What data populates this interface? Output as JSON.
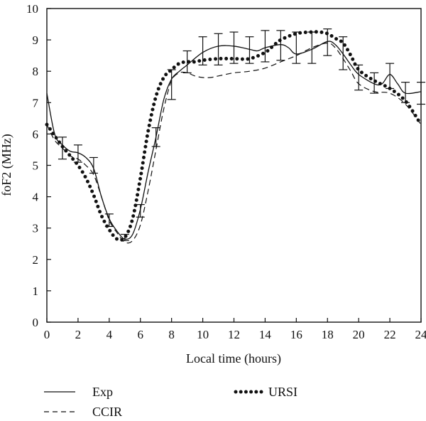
{
  "chart_data": {
    "type": "line",
    "xlabel": "Local time (hours)",
    "ylabel": "foF2 (MHz)",
    "xlim": [
      0,
      24
    ],
    "ylim": [
      0,
      10
    ],
    "xticks": [
      0,
      2,
      4,
      6,
      8,
      10,
      12,
      14,
      16,
      18,
      20,
      22,
      24
    ],
    "yticks": [
      0,
      1,
      2,
      3,
      4,
      5,
      6,
      7,
      8,
      9,
      10
    ],
    "grid": false,
    "legend_position": "bottom",
    "series": [
      {
        "name": "Exp",
        "style": "solid",
        "x": [
          0,
          0.5,
          1,
          1.5,
          2,
          2.5,
          3,
          3.5,
          4,
          4.5,
          5,
          5.5,
          6,
          6.5,
          7,
          7.5,
          8,
          8.5,
          9,
          10,
          11,
          12,
          13,
          13.5,
          14,
          15,
          15.5,
          16,
          17,
          18,
          18.5,
          19,
          19.5,
          20,
          21,
          21.5,
          22,
          22.5,
          23,
          24
        ],
        "y": [
          7.3,
          6.0,
          5.65,
          5.45,
          5.4,
          5.25,
          4.9,
          4.0,
          3.3,
          2.9,
          2.65,
          2.8,
          3.6,
          4.8,
          5.9,
          7.1,
          7.75,
          8.0,
          8.2,
          8.6,
          8.8,
          8.8,
          8.7,
          8.65,
          8.75,
          8.85,
          8.75,
          8.55,
          8.7,
          8.95,
          8.85,
          8.55,
          8.2,
          7.9,
          7.6,
          7.6,
          7.9,
          7.6,
          7.3,
          7.35
        ],
        "error_bars": [
          {
            "x": 1,
            "y": 5.55,
            "low": 5.2,
            "high": 5.9
          },
          {
            "x": 2,
            "y": 5.4,
            "low": 5.1,
            "high": 5.65
          },
          {
            "x": 3,
            "y": 4.95,
            "low": 4.75,
            "high": 5.25
          },
          {
            "x": 4,
            "y": 3.25,
            "low": 3.05,
            "high": 3.45
          },
          {
            "x": 5,
            "y": 2.7,
            "low": 2.6,
            "high": 2.8
          },
          {
            "x": 6,
            "y": 3.55,
            "low": 3.35,
            "high": 3.75
          },
          {
            "x": 7,
            "y": 5.9,
            "low": 5.6,
            "high": 6.2
          },
          {
            "x": 8,
            "y": 7.65,
            "low": 7.1,
            "high": 8.05
          },
          {
            "x": 9,
            "y": 8.25,
            "low": 7.95,
            "high": 8.65
          },
          {
            "x": 10,
            "y": 8.65,
            "low": 8.2,
            "high": 9.1
          },
          {
            "x": 11,
            "y": 8.7,
            "low": 8.2,
            "high": 9.2
          },
          {
            "x": 12,
            "y": 8.75,
            "low": 8.25,
            "high": 9.25
          },
          {
            "x": 13,
            "y": 8.65,
            "low": 8.25,
            "high": 9.1
          },
          {
            "x": 14,
            "y": 8.75,
            "low": 8.3,
            "high": 9.3
          },
          {
            "x": 15,
            "y": 8.85,
            "low": 8.35,
            "high": 9.3
          },
          {
            "x": 16,
            "y": 8.6,
            "low": 8.25,
            "high": 9.25
          },
          {
            "x": 17,
            "y": 8.7,
            "low": 8.25,
            "high": 9.25
          },
          {
            "x": 18,
            "y": 8.95,
            "low": 8.5,
            "high": 9.35
          },
          {
            "x": 19,
            "y": 8.6,
            "low": 8.05,
            "high": 9.1
          },
          {
            "x": 20,
            "y": 7.8,
            "low": 7.4,
            "high": 8.2
          },
          {
            "x": 21,
            "y": 7.6,
            "low": 7.3,
            "high": 7.95
          },
          {
            "x": 22,
            "y": 7.85,
            "low": 7.45,
            "high": 8.25
          },
          {
            "x": 23,
            "y": 7.35,
            "low": 7.0,
            "high": 7.65
          },
          {
            "x": 24,
            "y": 7.35,
            "low": 6.95,
            "high": 7.65
          }
        ]
      },
      {
        "name": "CCIR",
        "style": "dashed",
        "x": [
          0,
          0.5,
          1,
          1.5,
          2,
          2.5,
          3,
          3.5,
          4,
          4.5,
          5,
          5.5,
          6,
          6.5,
          7,
          7.5,
          8,
          8.5,
          9,
          9.5,
          10,
          10.5,
          11,
          12,
          13,
          14,
          15,
          16,
          17,
          18,
          18.5,
          19,
          19.5,
          20,
          21,
          22,
          23,
          24
        ],
        "y": [
          6.3,
          5.8,
          5.55,
          5.3,
          5.2,
          5.0,
          4.7,
          4.0,
          3.25,
          2.85,
          2.55,
          2.6,
          3.1,
          4.2,
          5.5,
          6.8,
          7.7,
          7.95,
          7.95,
          7.85,
          7.8,
          7.8,
          7.85,
          7.95,
          8.0,
          8.1,
          8.3,
          8.5,
          8.75,
          8.9,
          8.75,
          8.4,
          8.0,
          7.6,
          7.35,
          7.3,
          6.95,
          6.3
        ]
      },
      {
        "name": "URSI",
        "style": "dotted",
        "x": [
          0,
          0.5,
          1,
          1.5,
          2,
          2.5,
          3,
          3.5,
          4,
          4.5,
          5,
          5.5,
          6,
          6.5,
          7,
          7.5,
          8,
          8.5,
          9,
          9.5,
          10,
          11,
          12,
          13,
          14,
          14.5,
          15,
          16,
          17,
          17.5,
          18,
          18.5,
          19,
          19.5,
          20,
          21,
          22,
          23,
          24
        ],
        "y": [
          6.3,
          5.95,
          5.6,
          5.3,
          5.0,
          4.6,
          4.05,
          3.4,
          2.95,
          2.65,
          2.7,
          3.3,
          4.6,
          6.1,
          7.2,
          7.8,
          8.05,
          8.25,
          8.3,
          8.3,
          8.35,
          8.4,
          8.4,
          8.4,
          8.6,
          8.8,
          9.0,
          9.2,
          9.25,
          9.25,
          9.2,
          9.05,
          8.9,
          8.5,
          8.05,
          7.7,
          7.45,
          7.05,
          6.3
        ]
      }
    ]
  }
}
